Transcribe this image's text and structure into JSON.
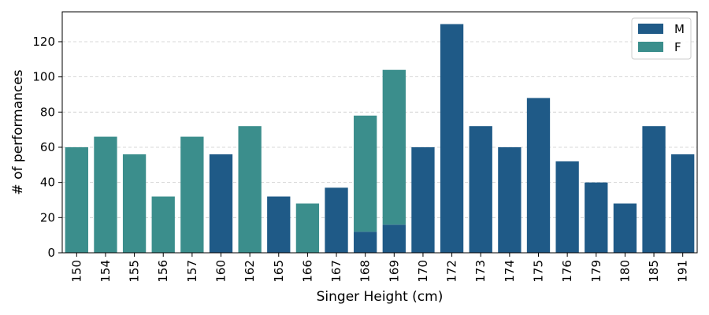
{
  "chart_data": {
    "type": "bar",
    "stacked": true,
    "categories": [
      "150",
      "154",
      "155",
      "156",
      "157",
      "160",
      "162",
      "165",
      "166",
      "167",
      "168",
      "169",
      "170",
      "172",
      "173",
      "174",
      "175",
      "176",
      "179",
      "180",
      "185",
      "191"
    ],
    "series": [
      {
        "name": "M",
        "color": "#1f5a87",
        "values": [
          0,
          0,
          0,
          0,
          0,
          56,
          0,
          32,
          0,
          37,
          12,
          16,
          60,
          130,
          72,
          60,
          88,
          52,
          40,
          28,
          72,
          56
        ]
      },
      {
        "name": "F",
        "color": "#3b8e8c",
        "values": [
          60,
          66,
          56,
          32,
          66,
          0,
          72,
          0,
          28,
          0,
          66,
          88,
          0,
          0,
          0,
          0,
          0,
          0,
          0,
          0,
          0,
          0
        ]
      }
    ],
    "xlabel": "Singer Height (cm)",
    "ylabel": "# of performances",
    "ylim": [
      0,
      137
    ],
    "yticks": [
      0,
      20,
      40,
      60,
      80,
      100,
      120
    ],
    "grid": "y-dashed",
    "legend_position": "top-right"
  }
}
